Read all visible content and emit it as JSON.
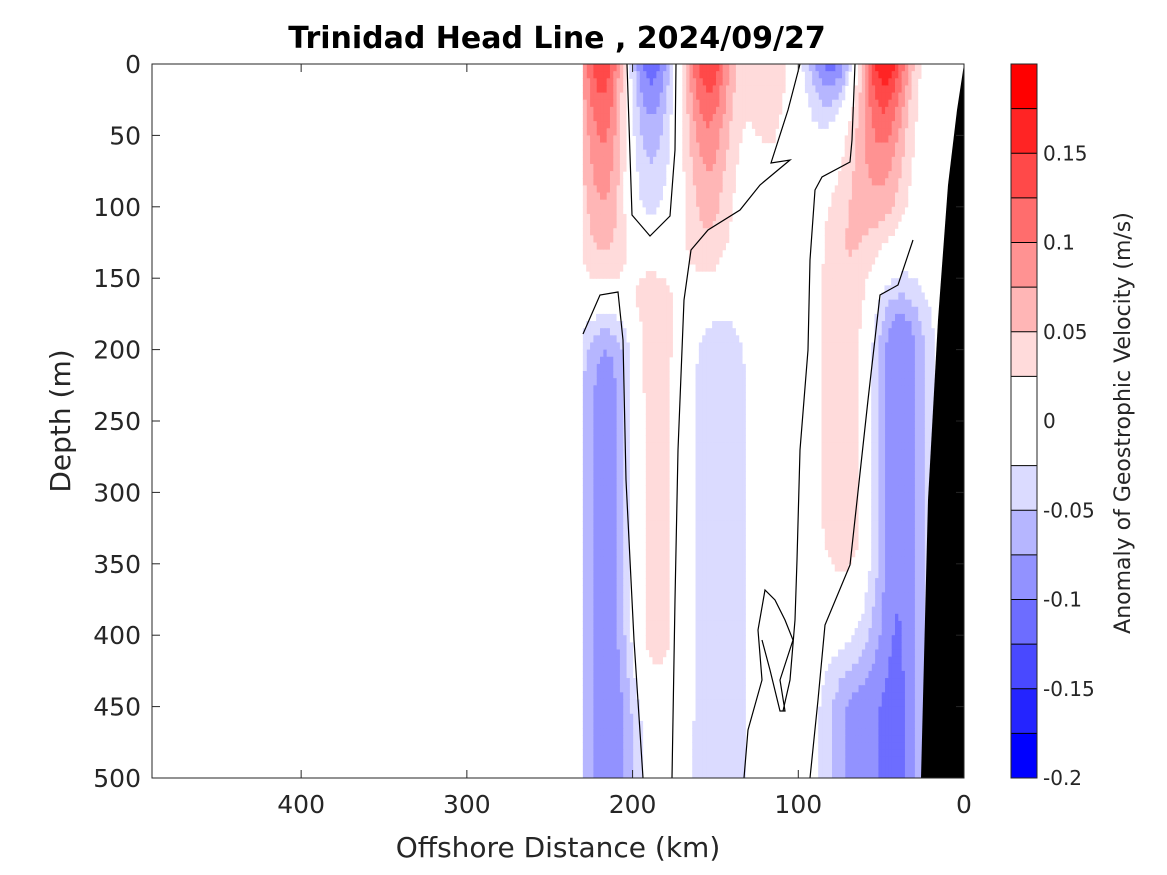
{
  "chart_data": {
    "type": "heatmap",
    "subtype": "filled-contour section",
    "title": "Trinidad Head Line , 2024/09/27",
    "xlabel": "Offshore Distance (km)",
    "ylabel": "Depth (m)",
    "colorbar_label": "Anomaly of Geostrophic Velocity (m/s)",
    "xlim": [
      490,
      0
    ],
    "x_reversed": true,
    "ylim": [
      0,
      500
    ],
    "y_reversed": true,
    "x_ticks": [
      400,
      300,
      200,
      100,
      0
    ],
    "x_tick_labels": [
      "400",
      "300",
      "200",
      "100",
      "0"
    ],
    "y_ticks": [
      0,
      50,
      100,
      150,
      200,
      250,
      300,
      350,
      400,
      450,
      500
    ],
    "y_tick_labels": [
      "0",
      "50",
      "100",
      "150",
      "200",
      "250",
      "300",
      "350",
      "400",
      "450",
      "500"
    ],
    "colorbar": {
      "range": [
        -0.2,
        0.2
      ],
      "levels": [
        -0.2,
        -0.175,
        -0.15,
        -0.125,
        -0.1,
        -0.075,
        -0.05,
        -0.025,
        0.025,
        0.05,
        0.075,
        0.1,
        0.125,
        0.15,
        0.175,
        0.2
      ],
      "colors": [
        "#0000ff",
        "#2424ff",
        "#4949ff",
        "#6d6dff",
        "#9292ff",
        "#b6b6ff",
        "#dbdbff",
        "#ffffff",
        "#ffdbdb",
        "#ffb6b6",
        "#ff9292",
        "#ff6d6d",
        "#ff4949",
        "#ff2424",
        "#ff0000"
      ],
      "ticks": [
        -0.2,
        -0.15,
        -0.1,
        -0.05,
        0,
        0.05,
        0.1,
        0.15
      ],
      "tick_labels": [
        "-0.2",
        "-0.15",
        "-0.1",
        "-0.05",
        "0",
        "0.05",
        "0.1",
        "0.15"
      ]
    },
    "data_extent_km": [
      0,
      230
    ],
    "bathymetry_color": "#000000",
    "velocity_features": [
      {
        "sign": "positive",
        "center_km": 218,
        "depth_range_m": [
          0,
          160
        ],
        "peak": 0.15
      },
      {
        "sign": "negative",
        "center_km": 190,
        "depth_range_m": [
          0,
          90
        ],
        "peak": -0.125
      },
      {
        "sign": "positive",
        "center_km": 155,
        "depth_range_m": [
          0,
          120
        ],
        "peak": 0.15
      },
      {
        "sign": "positive",
        "center_km": 118,
        "depth_range_m": [
          0,
          90
        ],
        "peak": 0.05
      },
      {
        "sign": "negative",
        "center_km": 80,
        "depth_range_m": [
          0,
          60
        ],
        "peak": -0.125
      },
      {
        "sign": "positive",
        "center_km": 48,
        "depth_range_m": [
          0,
          90
        ],
        "peak": 0.175
      },
      {
        "sign": "positive",
        "center_km": 70,
        "depth_range_m": [
          60,
          320
        ],
        "peak": 0.05
      },
      {
        "sign": "positive",
        "center_km": 190,
        "depth_range_m": [
          180,
          390
        ],
        "peak": 0.05
      },
      {
        "sign": "negative",
        "center_km": 215,
        "depth_range_m": [
          205,
          500
        ],
        "peak": -0.1
      },
      {
        "sign": "negative",
        "center_km": 148,
        "depth_range_m": [
          215,
          500
        ],
        "peak": -0.05
      },
      {
        "sign": "negative",
        "center_km": 40,
        "depth_range_m": [
          200,
          500
        ],
        "peak": -0.1
      },
      {
        "sign": "negative",
        "center_km": 68,
        "depth_range_m": [
          460,
          500
        ],
        "peak": -0.075
      }
    ]
  }
}
